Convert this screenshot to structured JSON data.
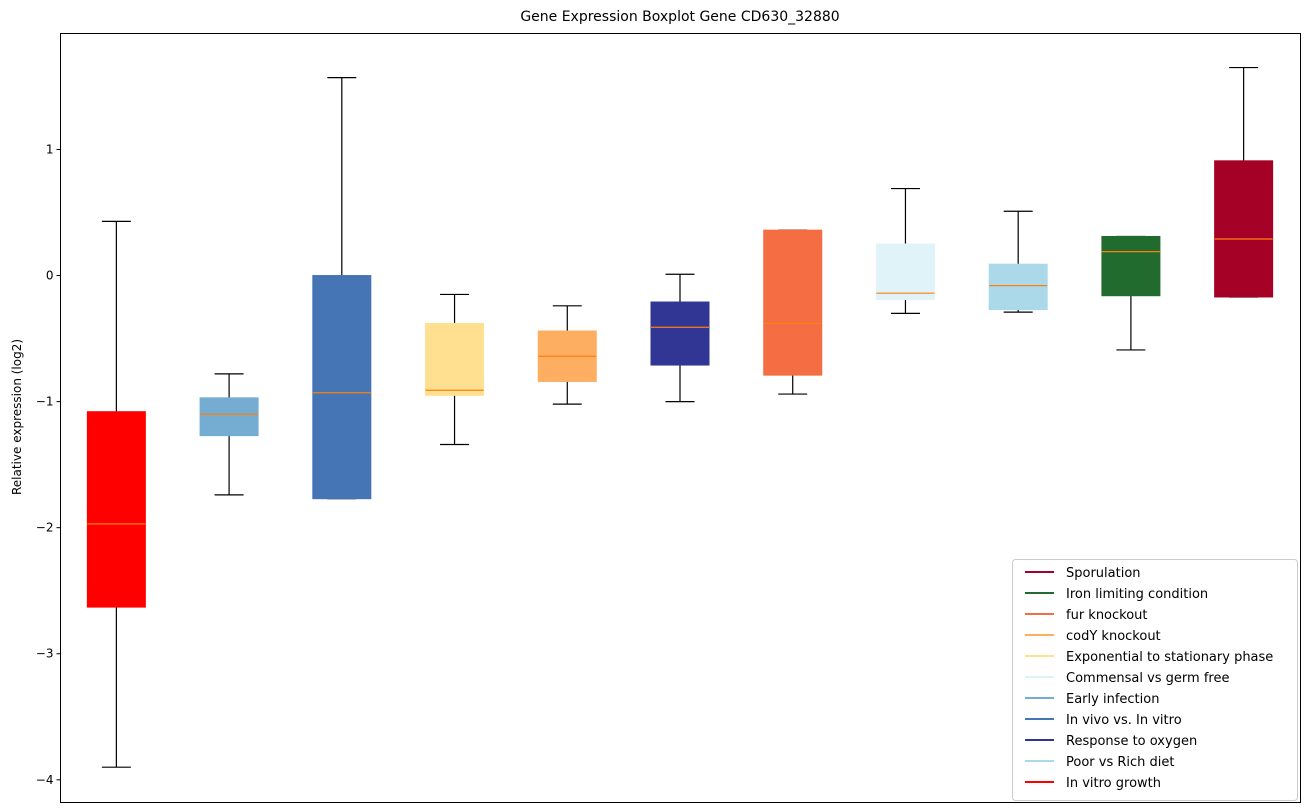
{
  "chart_data": {
    "type": "boxplot",
    "title": "Gene Expression Boxplot Gene CD630_32880",
    "xlabel": "",
    "ylabel": "Relative expression (log2)",
    "ylim": [
      -4.18,
      1.92
    ],
    "yticks": [
      1,
      0,
      -1,
      -2,
      -3,
      -4
    ],
    "ytick_labels": [
      "1",
      "0",
      "−1",
      "−2",
      "−3",
      "−4"
    ],
    "grid": false,
    "legend_position": "lower-right",
    "median_color": "#ff7f0e",
    "whisker_color": "#000000",
    "boxes": [
      {
        "name": "In vitro growth",
        "color": "#ff0000",
        "whisker_low": -3.9,
        "q1": -2.63,
        "median": -1.97,
        "q3": -1.08,
        "whisker_high": 0.43
      },
      {
        "name": "Early infection",
        "color": "#74add1",
        "whisker_low": -1.74,
        "q1": -1.27,
        "median": -1.1,
        "q3": -0.97,
        "whisker_high": -0.78
      },
      {
        "name": "In vivo vs. In vitro",
        "color": "#4575b4",
        "whisker_low": -1.77,
        "q1": -1.77,
        "median": -0.93,
        "q3": 0.0,
        "whisker_high": 1.57
      },
      {
        "name": "Exponential to stationary phase",
        "color": "#fee090",
        "whisker_low": -1.34,
        "q1": -0.95,
        "median": -0.91,
        "q3": -0.38,
        "whisker_high": -0.15
      },
      {
        "name": "codY knockout",
        "color": "#fdae61",
        "whisker_low": -1.02,
        "q1": -0.84,
        "median": -0.64,
        "q3": -0.44,
        "whisker_high": -0.24
      },
      {
        "name": "Response to oxygen",
        "color": "#313695",
        "whisker_low": -1.0,
        "q1": -0.71,
        "median": -0.41,
        "q3": -0.21,
        "whisker_high": 0.01
      },
      {
        "name": "fur knockout",
        "color": "#f46d43",
        "whisker_low": -0.94,
        "q1": -0.79,
        "median": -0.38,
        "q3": 0.36,
        "whisker_high": 0.36
      },
      {
        "name": "Commensal vs germ free",
        "color": "#e0f3f8",
        "whisker_low": -0.3,
        "q1": -0.19,
        "median": -0.14,
        "q3": 0.25,
        "whisker_high": 0.69
      },
      {
        "name": "Poor vs Rich diet",
        "color": "#abd9e9",
        "whisker_low": -0.29,
        "q1": -0.27,
        "median": -0.08,
        "q3": 0.09,
        "whisker_high": 0.51
      },
      {
        "name": "Iron limiting condition",
        "color": "#226b2e",
        "whisker_low": -0.59,
        "q1": -0.16,
        "median": 0.19,
        "q3": 0.31,
        "whisker_high": 0.31
      },
      {
        "name": "Sporulation",
        "color": "#a50026",
        "whisker_low": -0.17,
        "q1": -0.17,
        "median": 0.29,
        "q3": 0.91,
        "whisker_high": 1.65
      }
    ],
    "legend": [
      {
        "label": "Sporulation",
        "color": "#a50026"
      },
      {
        "label": "Iron limiting condition",
        "color": "#226b2e"
      },
      {
        "label": "fur knockout",
        "color": "#f46d43"
      },
      {
        "label": "codY knockout",
        "color": "#fdae61"
      },
      {
        "label": "Exponential to stationary phase",
        "color": "#fee090"
      },
      {
        "label": "Commensal vs germ free",
        "color": "#e0f3f8"
      },
      {
        "label": "Early infection",
        "color": "#74add1"
      },
      {
        "label": "In vivo vs. In vitro",
        "color": "#4575b4"
      },
      {
        "label": "Response to oxygen",
        "color": "#313695"
      },
      {
        "label": "Poor vs Rich diet",
        "color": "#abd9e9"
      },
      {
        "label": "In vitro growth",
        "color": "#ff0000"
      }
    ]
  }
}
